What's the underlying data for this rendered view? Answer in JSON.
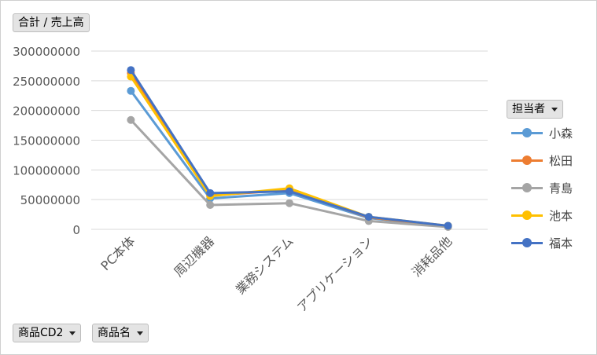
{
  "field_buttons": {
    "values_field": "合計 / 売上高",
    "legend_field": "担当者",
    "axis_field_1": "商品CD2",
    "axis_field_2": "商品名"
  },
  "colors": {
    "grid": "#d9d9d9",
    "axis_text": "#595959"
  },
  "chart_data": {
    "type": "line",
    "categories": [
      "PC本体",
      "周辺機器",
      "業務システム",
      "アプリケーション",
      "消耗品他"
    ],
    "ylim": [
      0,
      300000000
    ],
    "yticks": [
      0,
      50000000,
      100000000,
      150000000,
      200000000,
      250000000,
      300000000
    ],
    "ytick_labels": [
      "0",
      "50000000",
      "100000000",
      "150000000",
      "200000000",
      "250000000",
      "300000000"
    ],
    "grid": true,
    "legend_position": "right",
    "series": [
      {
        "name": "小森",
        "color": "#5B9BD5",
        "values": [
          233000000,
          52000000,
          61000000,
          19000000,
          5000000
        ]
      },
      {
        "name": "松田",
        "color": "#ED7D31",
        "values": [
          263000000,
          57000000,
          66000000,
          20000000,
          5500000
        ]
      },
      {
        "name": "青島",
        "color": "#A5A5A5",
        "values": [
          184000000,
          41000000,
          44000000,
          14000000,
          4000000
        ]
      },
      {
        "name": "池本",
        "color": "#FFC000",
        "values": [
          257000000,
          56000000,
          69000000,
          21000000,
          6000000
        ]
      },
      {
        "name": "福本",
        "color": "#4472C4",
        "values": [
          268000000,
          61000000,
          64000000,
          21000000,
          6000000
        ]
      }
    ]
  }
}
